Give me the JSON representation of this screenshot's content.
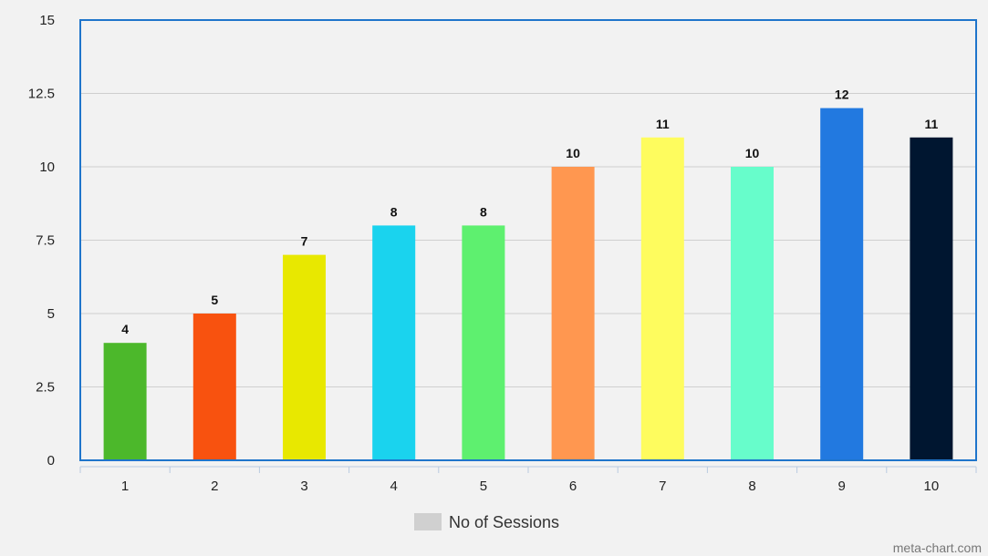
{
  "chart_data": {
    "type": "bar",
    "categories": [
      "1",
      "2",
      "3",
      "4",
      "5",
      "6",
      "7",
      "8",
      "9",
      "10"
    ],
    "series": [
      {
        "name": "No of Sessions",
        "values": [
          4,
          5,
          7,
          8,
          8,
          10,
          11,
          10,
          12,
          11
        ]
      }
    ],
    "bar_colors": [
      "#4cb82b",
      "#f8520f",
      "#e8e800",
      "#1ad3ee",
      "#5ef06f",
      "#ff9750",
      "#fefc5e",
      "#67fdcb",
      "#2279e0",
      "#001630"
    ],
    "ylim": [
      0,
      15
    ],
    "yticks": [
      "0",
      "2.5",
      "5",
      "7.5",
      "10",
      "12.5",
      "15"
    ],
    "ytick_values": [
      0,
      2.5,
      5,
      7.5,
      10,
      12.5,
      15
    ],
    "xlabel": "",
    "ylabel": "",
    "grid": true,
    "legend_position": "bottom-center",
    "legend_swatch_color": "#d0d0d0",
    "plot_border_color": "#1f75cb"
  },
  "watermark": "meta-chart.com"
}
